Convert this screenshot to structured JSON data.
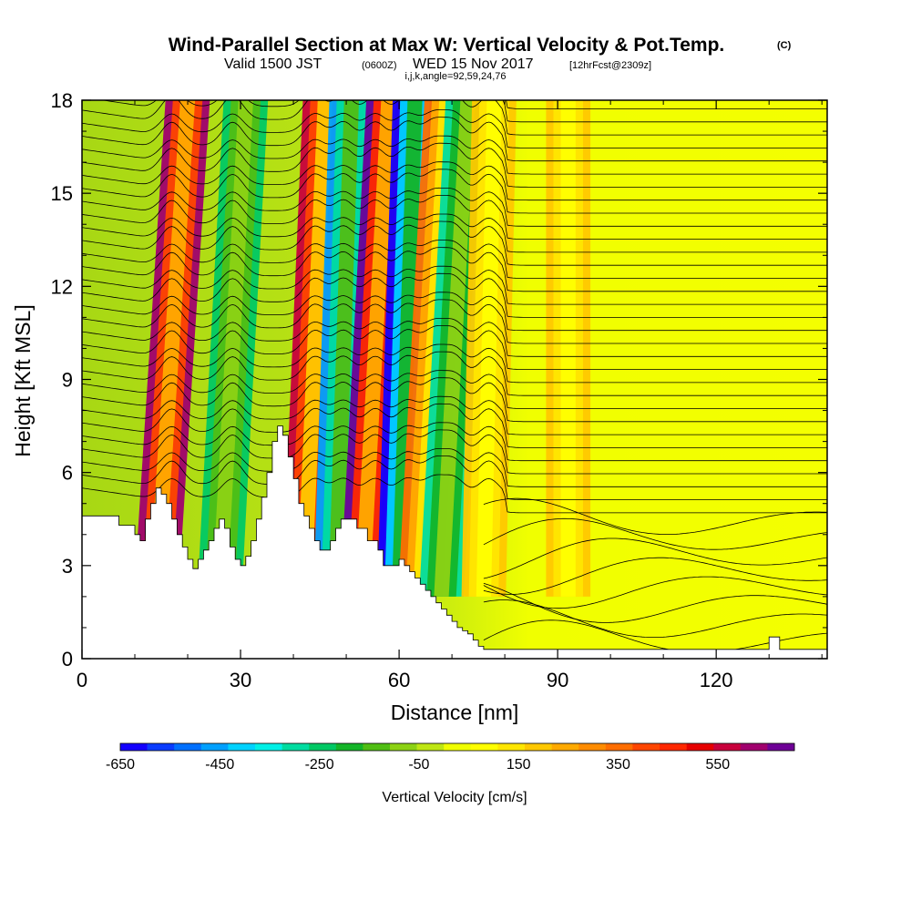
{
  "header": {
    "title_main": "Wind-Parallel Section at Max W: Vertical Velocity & Pot.Temp.",
    "title_mark": "(C)",
    "sub_valid": "Valid 1500 JST",
    "sub_utc": "(0600Z)",
    "sub_date": "WED 15 Nov 2017",
    "sub_fcst": "[12hrFcst@2309z]",
    "sub_indices": "i,j,k,angle=92,59,24,76"
  },
  "chart_data": {
    "type": "heatmap",
    "title": "Wind-Parallel Section at Max W: Vertical Velocity & Pot.Temp.",
    "xlabel": "Distance [nm]",
    "ylabel": "Height [Kft MSL]",
    "xlim": [
      0,
      141
    ],
    "ylim": [
      0,
      18
    ],
    "x_ticks": [
      0,
      30,
      60,
      90,
      120
    ],
    "y_ticks": [
      0,
      3,
      6,
      9,
      12,
      15,
      18
    ],
    "grid": false,
    "colorbar": {
      "title": "Vertical Velocity [cm/s]",
      "placement": "bottom",
      "tick_labels": [
        "-650",
        "-450",
        "-250",
        "-50",
        "150",
        "350",
        "550"
      ],
      "colors": [
        "#1400ff",
        "#0a3cff",
        "#0070ff",
        "#00a0ff",
        "#00d2ff",
        "#00f0e6",
        "#00dca0",
        "#00c864",
        "#14b428",
        "#50be14",
        "#8cd214",
        "#bee614",
        "#f0ff00",
        "#ffff00",
        "#ffe600",
        "#ffc800",
        "#ffaa00",
        "#ff8c00",
        "#ff6e00",
        "#ff4600",
        "#ff2800",
        "#e60000",
        "#c8003c",
        "#a0006e",
        "#6e0096"
      ]
    },
    "waves": [
      {
        "x_top": 20,
        "x_bottom": 14,
        "w": 600
      },
      {
        "x_top": 31,
        "x_bottom": 26,
        "w": -250
      },
      {
        "x_top": 46,
        "x_bottom": 42,
        "w": 550
      },
      {
        "x_top": 51,
        "x_bottom": 48,
        "w": -500
      },
      {
        "x_top": 58,
        "x_bottom": 53,
        "w": 650
      },
      {
        "x_top": 63,
        "x_bottom": 60,
        "w": -650
      },
      {
        "x_top": 69,
        "x_bottom": 64,
        "w": 300
      },
      {
        "x_top": 73,
        "x_bottom": 68,
        "w": -350
      },
      {
        "x_top": 78,
        "x_bottom": 76,
        "w": 150
      },
      {
        "x_top": 92,
        "x_bottom": 92,
        "w": 150
      }
    ],
    "terrain": {
      "x": [
        0,
        3,
        6,
        7,
        9,
        10,
        11,
        12,
        13,
        14,
        15,
        16,
        17,
        18,
        19,
        20,
        21,
        22,
        23,
        24,
        25,
        26,
        27,
        28,
        29,
        30,
        31,
        32,
        33,
        34,
        35,
        36,
        37,
        38,
        39,
        40,
        41,
        42,
        43,
        44,
        45,
        46,
        47,
        48,
        49,
        50,
        52,
        54,
        56,
        57,
        59,
        60,
        61,
        62,
        63,
        64,
        65,
        66,
        67,
        68,
        69,
        70,
        71,
        72,
        73,
        74,
        75,
        76,
        77,
        78,
        79,
        80,
        85,
        90,
        100,
        110,
        120,
        128,
        129,
        130,
        131,
        132,
        133,
        135,
        141
      ],
      "h": [
        4.6,
        4.6,
        4.6,
        4.3,
        4.3,
        4.0,
        3.8,
        4.5,
        5.0,
        5.5,
        5.3,
        5.0,
        4.5,
        4.0,
        3.6,
        3.2,
        2.9,
        3.2,
        3.5,
        3.8,
        4.2,
        4.5,
        4.2,
        3.6,
        3.2,
        3.0,
        3.3,
        3.8,
        4.5,
        5.2,
        6.0,
        7.0,
        7.5,
        7.2,
        6.5,
        5.8,
        5.0,
        4.6,
        4.2,
        3.8,
        3.5,
        3.5,
        3.8,
        4.2,
        4.5,
        4.5,
        4.2,
        3.8,
        3.5,
        3.0,
        3.0,
        3.2,
        3.0,
        2.8,
        2.6,
        2.4,
        2.2,
        2.0,
        1.8,
        1.6,
        1.4,
        1.2,
        1.0,
        0.9,
        0.8,
        0.6,
        0.4,
        0.3,
        0.3,
        0.3,
        0.3,
        0.3,
        0.3,
        0.3,
        0.3,
        0.3,
        0.3,
        0.3,
        0.3,
        0.7,
        0.7,
        0.3,
        0.3,
        0.3,
        0.3
      ]
    }
  }
}
